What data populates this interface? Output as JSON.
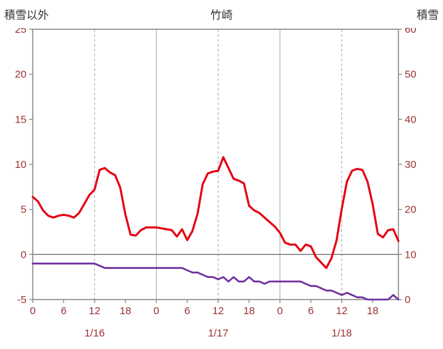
{
  "chart_data": {
    "type": "line",
    "title": "竹崎",
    "left_axis": {
      "label": "積雪以外",
      "min": -5,
      "max": 25,
      "ticks": [
        25,
        20,
        15,
        10,
        5,
        0,
        -5
      ]
    },
    "right_axis": {
      "label": "積雪",
      "min": 0,
      "max": 60,
      "ticks": [
        60,
        50,
        40,
        30,
        20,
        10,
        0
      ]
    },
    "x_axis": {
      "hours_total": 72,
      "hour_ticks": [
        0,
        6,
        12,
        18,
        24,
        30,
        36,
        42,
        48,
        54,
        60,
        66
      ],
      "hour_tick_labels": [
        "0",
        "6",
        "12",
        "18",
        "0",
        "6",
        "12",
        "18",
        "0",
        "6",
        "12",
        "18"
      ],
      "date_labels": [
        "1/16",
        "1/17",
        "1/18"
      ],
      "date_label_hours": [
        12,
        36,
        60
      ]
    },
    "grid": {
      "solid_hours": [
        24,
        48
      ],
      "dashed_hours": [
        12,
        36,
        60
      ],
      "zero_line_left_value": 0
    },
    "series": [
      {
        "name": "purple",
        "axis": "right",
        "values": [
          8,
          8,
          8,
          8,
          8,
          8,
          8,
          8,
          8,
          8,
          8,
          8,
          8,
          7.5,
          7,
          7,
          7,
          7,
          7,
          7,
          7,
          7,
          7,
          7,
          7,
          7,
          7,
          7,
          7,
          7,
          6.5,
          6,
          6,
          5.5,
          5,
          5,
          4.5,
          5,
          4,
          5,
          4,
          4,
          5,
          4,
          4,
          3.5,
          4,
          4,
          4,
          4,
          4,
          4,
          4,
          3.5,
          3,
          3,
          2.5,
          2,
          2,
          1.5,
          1,
          1.5,
          1,
          0.5,
          0.5,
          0,
          0,
          0,
          0,
          0,
          1,
          0
        ]
      },
      {
        "name": "red",
        "axis": "left",
        "values": [
          6.4,
          5.9,
          4.9,
          4.3,
          4.1,
          4.3,
          4.4,
          4.3,
          4.1,
          4.6,
          5.6,
          6.6,
          7.2,
          9.4,
          9.6,
          9.1,
          8.8,
          7.4,
          4.4,
          2.2,
          2.1,
          2.7,
          3.0,
          3.0,
          3.0,
          2.9,
          2.8,
          2.7,
          2.0,
          2.8,
          1.6,
          2.6,
          4.5,
          7.8,
          9.0,
          9.2,
          9.3,
          10.8,
          9.6,
          8.4,
          8.2,
          7.9,
          5.4,
          4.9,
          4.6,
          4.1,
          3.6,
          3.1,
          2.4,
          1.3,
          1.1,
          1.1,
          0.4,
          1.1,
          0.9,
          -0.3,
          -0.9,
          -1.5,
          -0.4,
          1.6,
          5.1,
          8.1,
          9.3,
          9.5,
          9.4,
          8.1,
          5.6,
          2.3,
          1.9,
          2.7,
          2.8,
          1.5
        ]
      }
    ],
    "colors": {
      "red_line": "#e60012",
      "purple_line": "#7030a0",
      "grid": "#aaaaaa",
      "border": "#888888",
      "zero_line": "#777777",
      "tick": "#888888",
      "axis_text": "#993333",
      "title_text": "#333333"
    }
  }
}
